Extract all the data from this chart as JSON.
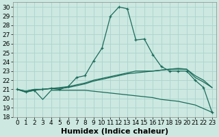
{
  "xlabel": "Humidex (Indice chaleur)",
  "background_color": "#cce8e0",
  "grid_color": "#aad4cc",
  "line_color": "#1a6b5a",
  "xlim": [
    -0.5,
    23.5
  ],
  "ylim": [
    18,
    30.5
  ],
  "xticks": [
    0,
    1,
    2,
    3,
    4,
    5,
    6,
    7,
    8,
    9,
    10,
    11,
    12,
    13,
    14,
    15,
    16,
    17,
    18,
    19,
    20,
    21,
    22,
    23
  ],
  "yticks": [
    18,
    19,
    20,
    21,
    22,
    23,
    24,
    25,
    26,
    27,
    28,
    29,
    30
  ],
  "curve_x": [
    0,
    1,
    2,
    3,
    4,
    5,
    6,
    7,
    8,
    9,
    10,
    11,
    12,
    13,
    14,
    15,
    16,
    17,
    18,
    19,
    20,
    21,
    22,
    23
  ],
  "curve_y": [
    21.0,
    20.7,
    20.9,
    21.0,
    21.1,
    21.0,
    21.3,
    22.3,
    22.5,
    24.1,
    25.5,
    29.0,
    30.0,
    29.8,
    26.4,
    26.5,
    24.8,
    23.5,
    23.0,
    23.0,
    23.0,
    22.0,
    21.2,
    18.5
  ],
  "upper1_x": [
    0,
    1,
    2,
    3,
    4,
    5,
    6,
    7,
    8,
    9,
    10,
    11,
    12,
    13,
    14,
    15,
    16,
    17,
    18,
    19,
    20,
    21,
    22,
    23
  ],
  "upper1_y": [
    21.0,
    20.8,
    21.0,
    21.0,
    21.1,
    21.1,
    21.2,
    21.4,
    21.6,
    21.9,
    22.1,
    22.3,
    22.5,
    22.7,
    22.8,
    22.9,
    23.0,
    23.1,
    23.2,
    23.2,
    23.2,
    22.3,
    21.8,
    21.2
  ],
  "upper2_x": [
    0,
    1,
    2,
    3,
    4,
    5,
    6,
    7,
    8,
    9,
    10,
    11,
    12,
    13,
    14,
    15,
    16,
    17,
    18,
    19,
    20,
    21,
    22,
    23
  ],
  "upper2_y": [
    21.0,
    20.8,
    21.0,
    21.0,
    21.1,
    21.2,
    21.3,
    21.5,
    21.7,
    22.0,
    22.2,
    22.4,
    22.6,
    22.8,
    23.0,
    23.0,
    23.0,
    23.1,
    23.2,
    23.3,
    23.2,
    22.5,
    22.0,
    21.2
  ],
  "lower_x": [
    0,
    1,
    2,
    3,
    4,
    5,
    6,
    7,
    8,
    9,
    10,
    11,
    12,
    13,
    14,
    15,
    16,
    17,
    18,
    19,
    20,
    21,
    22,
    23
  ],
  "lower_y": [
    21.0,
    20.7,
    20.9,
    19.9,
    20.9,
    20.9,
    20.9,
    20.9,
    20.9,
    20.8,
    20.7,
    20.6,
    20.5,
    20.4,
    20.3,
    20.2,
    20.1,
    19.9,
    19.8,
    19.7,
    19.5,
    19.3,
    18.9,
    18.5
  ],
  "fontsize_label": 8,
  "tick_fontsize": 6.5
}
